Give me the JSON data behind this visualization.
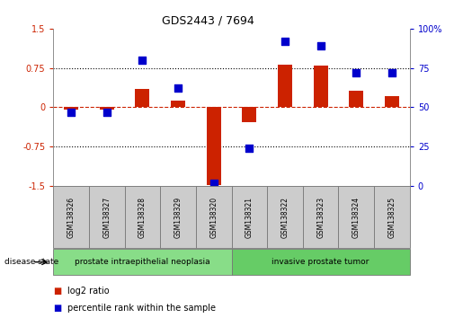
{
  "title": "GDS2443 / 7694",
  "samples": [
    "GSM138326",
    "GSM138327",
    "GSM138328",
    "GSM138329",
    "GSM138320",
    "GSM138321",
    "GSM138322",
    "GSM138323",
    "GSM138324",
    "GSM138325"
  ],
  "log2_ratio": [
    -0.04,
    -0.05,
    0.35,
    0.12,
    -1.48,
    -0.28,
    0.82,
    0.8,
    0.32,
    0.22
  ],
  "percentile_rank": [
    47,
    47,
    80,
    62,
    2,
    24,
    92,
    89,
    72,
    72
  ],
  "groups": [
    {
      "label": "prostate intraepithelial neoplasia",
      "indices": [
        0,
        1,
        2,
        3,
        4
      ],
      "color": "#88DD88"
    },
    {
      "label": "invasive prostate tumor",
      "indices": [
        5,
        6,
        7,
        8,
        9
      ],
      "color": "#66CC66"
    }
  ],
  "disease_state_label": "disease state",
  "bar_color": "#CC2200",
  "point_color": "#0000CC",
  "ylim_left": [
    -1.5,
    1.5
  ],
  "ylim_right": [
    0,
    100
  ],
  "yticks_left": [
    -1.5,
    -0.75,
    0,
    0.75,
    1.5
  ],
  "ytick_labels_left": [
    "-1.5",
    "-0.75",
    "0",
    "0.75",
    "1.5"
  ],
  "yticks_right": [
    0,
    25,
    50,
    75,
    100
  ],
  "ytick_labels_right": [
    "0",
    "25",
    "50",
    "75",
    "100%"
  ],
  "hlines_dotted": [
    0.75,
    -0.75
  ],
  "legend_items": [
    {
      "color": "#CC2200",
      "label": "log2 ratio"
    },
    {
      "color": "#0000CC",
      "label": "percentile rank within the sample"
    }
  ],
  "bg_color": "#FFFFFF",
  "plot_bg_color": "#FFFFFF",
  "tick_color_left": "#CC2200",
  "tick_color_right": "#0000CC",
  "sample_bg_color": "#CCCCCC",
  "group_border_color": "#777777"
}
